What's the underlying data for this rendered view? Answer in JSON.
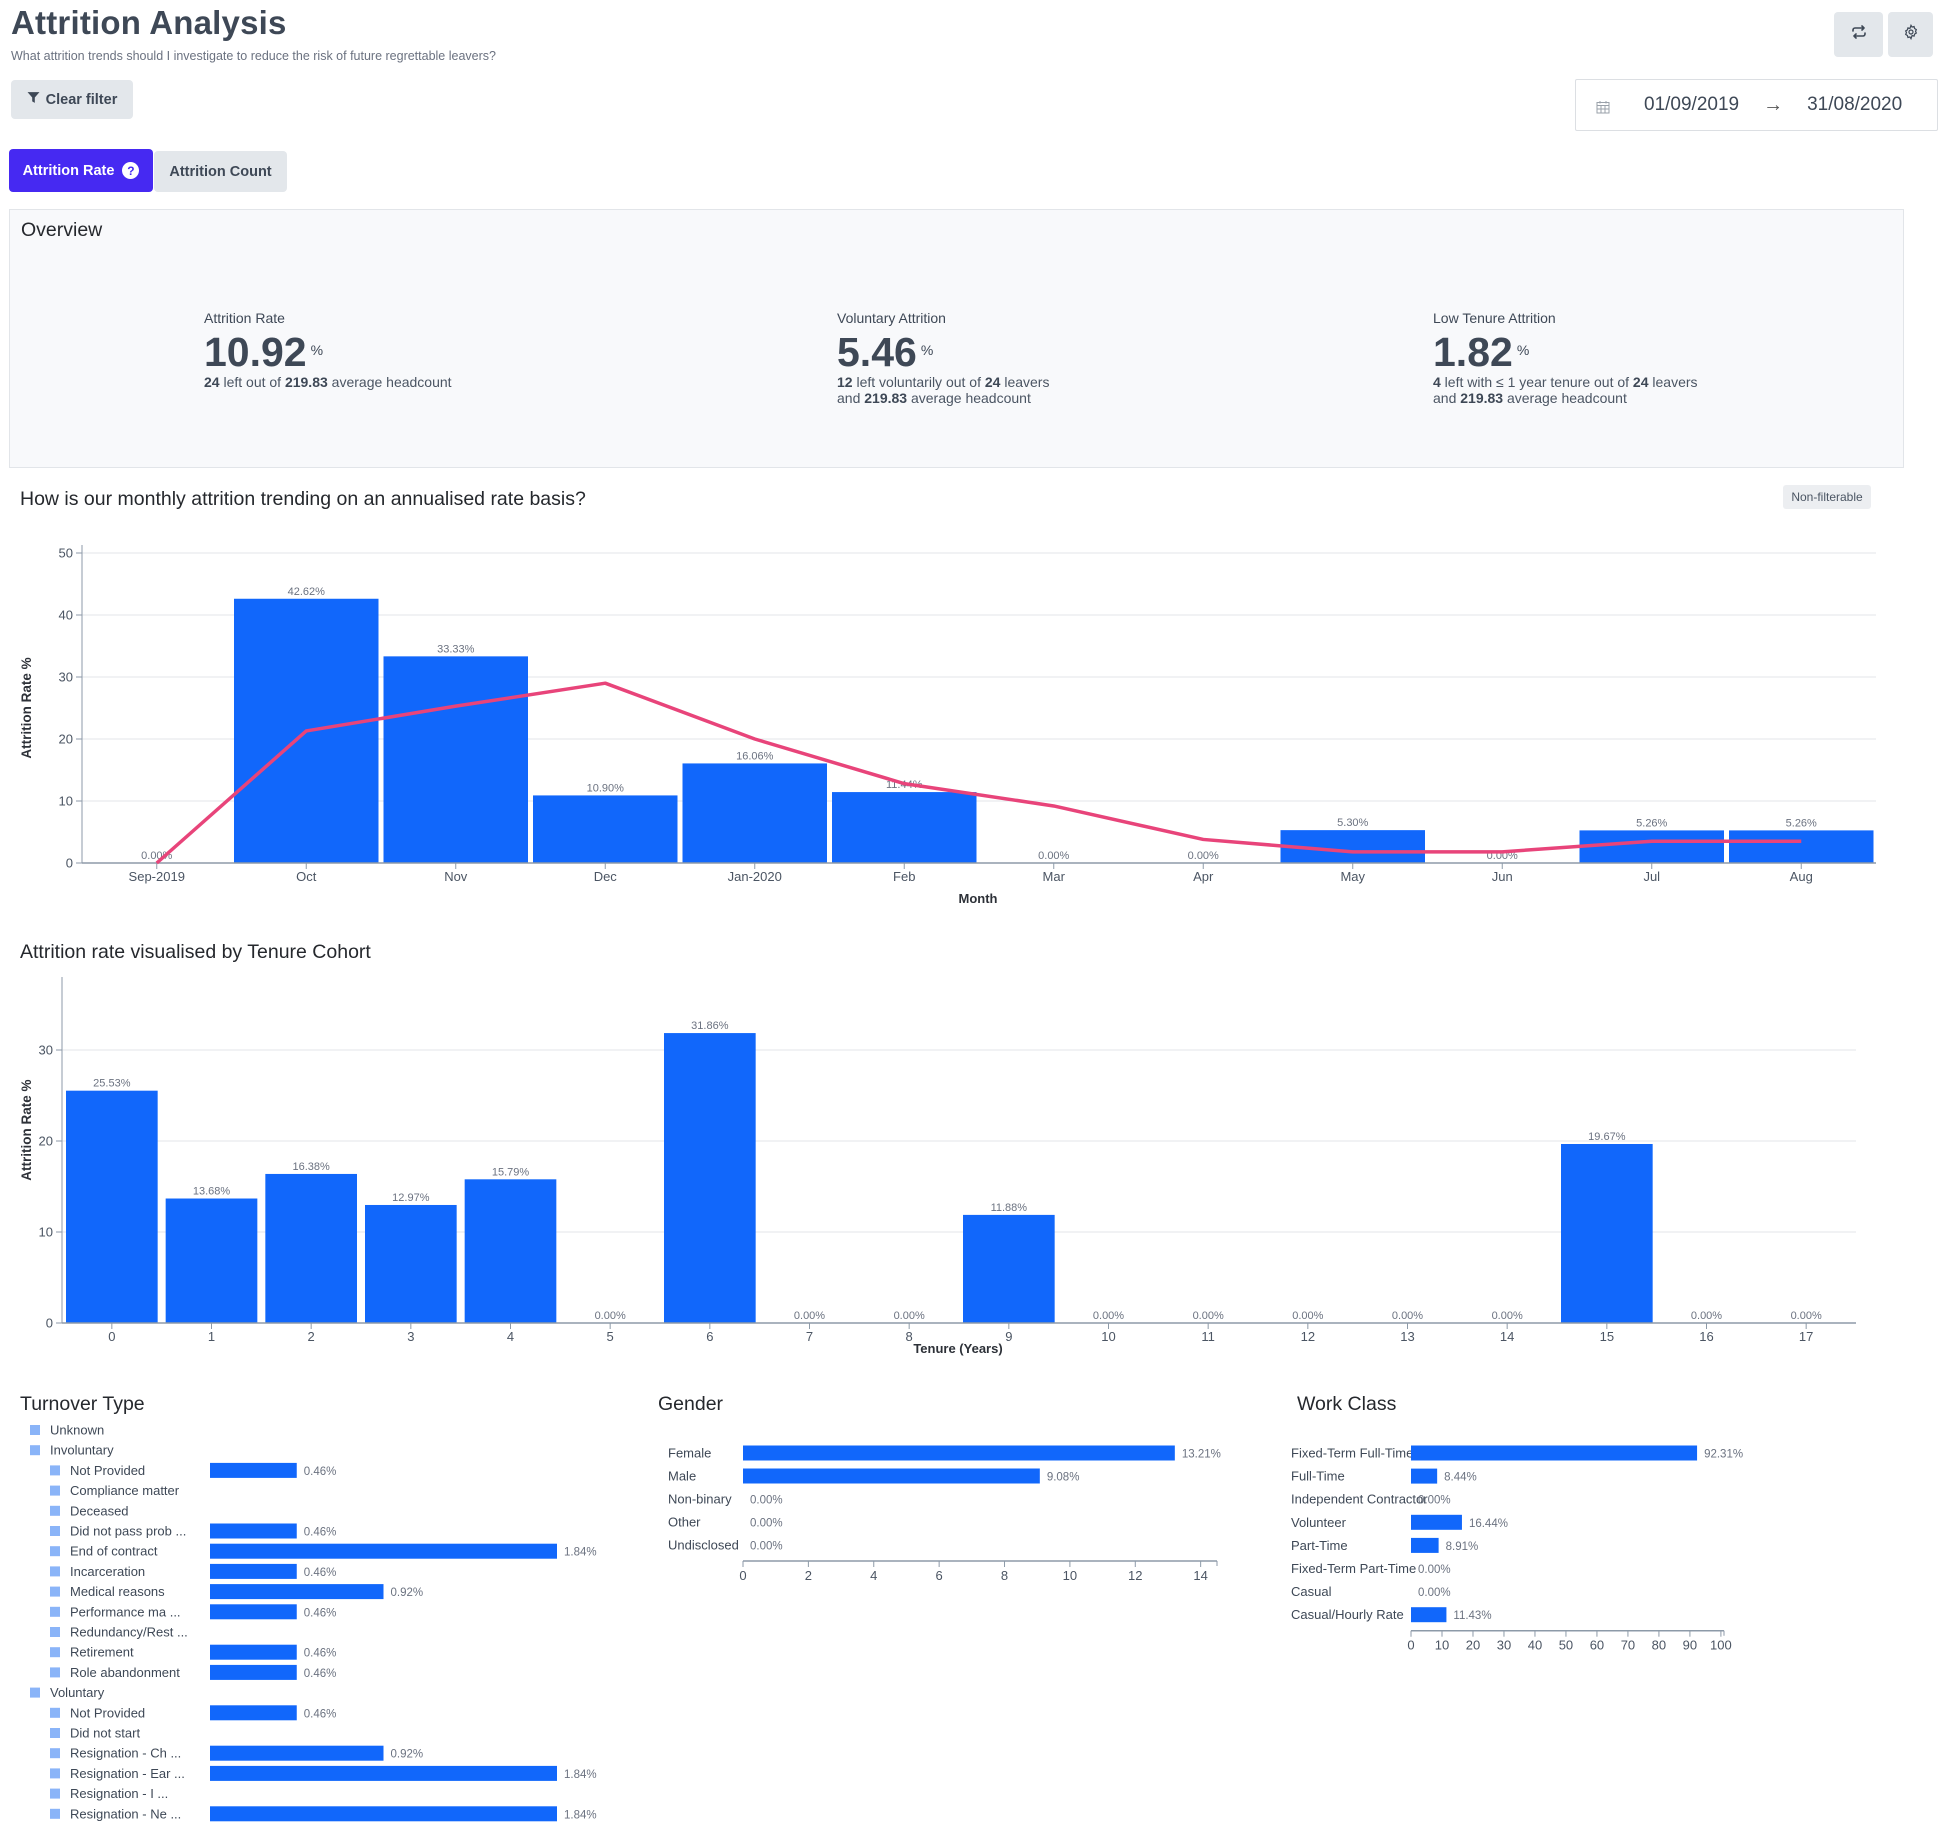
{
  "header": {
    "title": "Attrition Analysis",
    "subtitle": "What attrition trends should I investigate to reduce the risk of future regrettable leavers?",
    "clear_filter_label": "Clear filter",
    "refresh_icon": "refresh-icon",
    "settings_icon": "gear-icon",
    "date_from": "01/09/2019",
    "date_to": "31/08/2020",
    "date_arrow": "→"
  },
  "tabs": [
    {
      "label": "Attrition Rate",
      "active": true,
      "help_icon": "?"
    },
    {
      "label": "Attrition Count",
      "active": false
    }
  ],
  "overview": {
    "title": "Overview",
    "kpis": [
      {
        "label": "Attrition Rate",
        "value": "10.92",
        "unit": "%",
        "desc_parts": [
          {
            "b": "24"
          },
          {
            "t": " left out of "
          },
          {
            "b": "219.83"
          },
          {
            "t": " average headcount"
          }
        ]
      },
      {
        "label": "Voluntary Attrition",
        "value": "5.46",
        "unit": "%",
        "desc_line1": [
          {
            "b": "12"
          },
          {
            "t": " left voluntarily out of "
          },
          {
            "b": "24"
          },
          {
            "t": " leavers"
          }
        ],
        "desc_line2": [
          {
            "t": "and "
          },
          {
            "b": "219.83"
          },
          {
            "t": " average headcount"
          }
        ]
      },
      {
        "label": "Low Tenure Attrition",
        "value": "1.82",
        "unit": "%",
        "desc_line1": [
          {
            "b": "4"
          },
          {
            "t": " left with ≤ 1 year tenure out of "
          },
          {
            "b": "24"
          },
          {
            "t": " leavers"
          }
        ],
        "desc_line2": [
          {
            "t": "and "
          },
          {
            "b": "219.83"
          },
          {
            "t": " average headcount"
          }
        ]
      }
    ]
  },
  "colors": {
    "bar": "#1167fb",
    "line": "#e8447a",
    "legend_square": "#8ab4f8",
    "tab_active": "#4629f2",
    "axis": "#8d9aa8",
    "grid": "#e3e5e8",
    "label": "#6b7280"
  },
  "chart_data": [
    {
      "id": "monthly",
      "type": "bar",
      "title": "How is our monthly attrition trending on an annualised rate basis?",
      "badge": "Non-filterable",
      "xlabel": "Month",
      "ylabel": "Attrition Rate %",
      "ylim": [
        0,
        50
      ],
      "yticks": [
        0,
        10,
        20,
        30,
        40,
        50
      ],
      "grid": true,
      "categories": [
        "Sep-2019",
        "Oct",
        "Nov",
        "Dec",
        "Jan-2020",
        "Feb",
        "Mar",
        "Apr",
        "May",
        "Jun",
        "Jul",
        "Aug"
      ],
      "series": [
        {
          "name": "Monthly Attrition Rate",
          "kind": "bar",
          "values": [
            0.0,
            42.62,
            33.33,
            10.9,
            16.06,
            11.44,
            0.0,
            0.0,
            5.3,
            0.0,
            5.26,
            5.26
          ],
          "labels": [
            "0.00%",
            "42.62%",
            "33.33%",
            "10.90%",
            "16.06%",
            "11.44%",
            "0.00%",
            "0.00%",
            "5.30%",
            "0.00%",
            "5.26%",
            "5.26%"
          ]
        },
        {
          "name": "Trend",
          "kind": "line",
          "values": [
            0.0,
            21.3,
            25.3,
            29.0,
            20.0,
            12.8,
            9.2,
            3.8,
            1.8,
            1.8,
            3.5,
            3.5
          ]
        }
      ]
    },
    {
      "id": "tenure",
      "type": "bar",
      "title": "Attrition rate visualised by Tenure Cohort",
      "xlabel": "Tenure (Years)",
      "ylabel": "Attrition Rate %",
      "ylim": [
        0,
        38
      ],
      "yticks": [
        0,
        10,
        20,
        30
      ],
      "grid": true,
      "categories": [
        "0",
        "1",
        "2",
        "3",
        "4",
        "5",
        "6",
        "7",
        "8",
        "9",
        "10",
        "11",
        "12",
        "13",
        "14",
        "15",
        "16",
        "17"
      ],
      "values": [
        25.53,
        13.68,
        16.38,
        12.97,
        15.79,
        0.0,
        31.86,
        0.0,
        0.0,
        11.88,
        0.0,
        0.0,
        0.0,
        0.0,
        0.0,
        19.67,
        0.0,
        0.0
      ],
      "labels": [
        "25.53%",
        "13.68%",
        "16.38%",
        "12.97%",
        "15.79%",
        "0.00%",
        "31.86%",
        "0.00%",
        "0.00%",
        "11.88%",
        "0.00%",
        "0.00%",
        "0.00%",
        "0.00%",
        "0.00%",
        "19.67%",
        "0.00%",
        "0.00%"
      ]
    },
    {
      "id": "turnover",
      "type": "bar",
      "orientation": "horizontal",
      "title": "Turnover Type",
      "xlim": [
        0,
        1.84
      ],
      "rows": [
        {
          "label": "Unknown",
          "level": 0,
          "value": null,
          "text": ""
        },
        {
          "label": "Involuntary",
          "level": 0,
          "value": null,
          "text": ""
        },
        {
          "label": "Not Provided",
          "level": 1,
          "value": 0.46,
          "text": "0.46%"
        },
        {
          "label": "Compliance matter",
          "level": 1,
          "value": null,
          "text": ""
        },
        {
          "label": "Deceased",
          "level": 1,
          "value": null,
          "text": ""
        },
        {
          "label": "Did not pass prob ...",
          "level": 1,
          "value": 0.46,
          "text": "0.46%"
        },
        {
          "label": "End of contract",
          "level": 1,
          "value": 1.84,
          "text": "1.84%"
        },
        {
          "label": "Incarceration",
          "level": 1,
          "value": 0.46,
          "text": "0.46%"
        },
        {
          "label": "Medical reasons",
          "level": 1,
          "value": 0.92,
          "text": "0.92%"
        },
        {
          "label": "Performance ma ...",
          "level": 1,
          "value": 0.46,
          "text": "0.46%"
        },
        {
          "label": "Redundancy/Rest ...",
          "level": 1,
          "value": null,
          "text": ""
        },
        {
          "label": "Retirement",
          "level": 1,
          "value": 0.46,
          "text": "0.46%"
        },
        {
          "label": "Role abandonment",
          "level": 1,
          "value": 0.46,
          "text": "0.46%"
        },
        {
          "label": "Voluntary",
          "level": 0,
          "value": null,
          "text": ""
        },
        {
          "label": "Not Provided",
          "level": 1,
          "value": 0.46,
          "text": "0.46%"
        },
        {
          "label": "Did not start",
          "level": 1,
          "value": null,
          "text": ""
        },
        {
          "label": "Resignation - Ch ...",
          "level": 1,
          "value": 0.92,
          "text": "0.92%"
        },
        {
          "label": "Resignation - Ear ...",
          "level": 1,
          "value": 1.84,
          "text": "1.84%"
        },
        {
          "label": "Resignation - I ...",
          "level": 1,
          "value": null,
          "text": ""
        },
        {
          "label": "Resignation - Ne ...",
          "level": 1,
          "value": 1.84,
          "text": "1.84%"
        }
      ]
    },
    {
      "id": "gender",
      "type": "bar",
      "orientation": "horizontal",
      "title": "Gender",
      "xlim": [
        0,
        14.5
      ],
      "xticks": [
        0,
        2,
        4,
        6,
        8,
        10,
        12,
        14
      ],
      "categories": [
        "Female",
        "Male",
        "Non-binary",
        "Other",
        "Undisclosed"
      ],
      "values": [
        13.21,
        9.08,
        0.0,
        0.0,
        0.0
      ],
      "labels": [
        "13.21%",
        "9.08%",
        "0.00%",
        "0.00%",
        "0.00%"
      ]
    },
    {
      "id": "workclass",
      "type": "bar",
      "orientation": "horizontal",
      "title": "Work Class",
      "xlim": [
        0,
        101
      ],
      "xticks": [
        0,
        10,
        20,
        30,
        40,
        50,
        60,
        70,
        80,
        90,
        100
      ],
      "categories": [
        "Fixed-Term Full-Time",
        "Full-Time",
        "Independent Contractor",
        "Volunteer",
        "Part-Time",
        "Fixed-Term Part-Time",
        "Casual",
        "Casual/Hourly Rate"
      ],
      "values": [
        92.31,
        8.44,
        0.0,
        16.44,
        8.91,
        0.0,
        0.0,
        11.43
      ],
      "labels": [
        "92.31%",
        "8.44%",
        "0.00%",
        "16.44%",
        "8.91%",
        "0.00%",
        "0.00%",
        "11.43%"
      ]
    }
  ]
}
